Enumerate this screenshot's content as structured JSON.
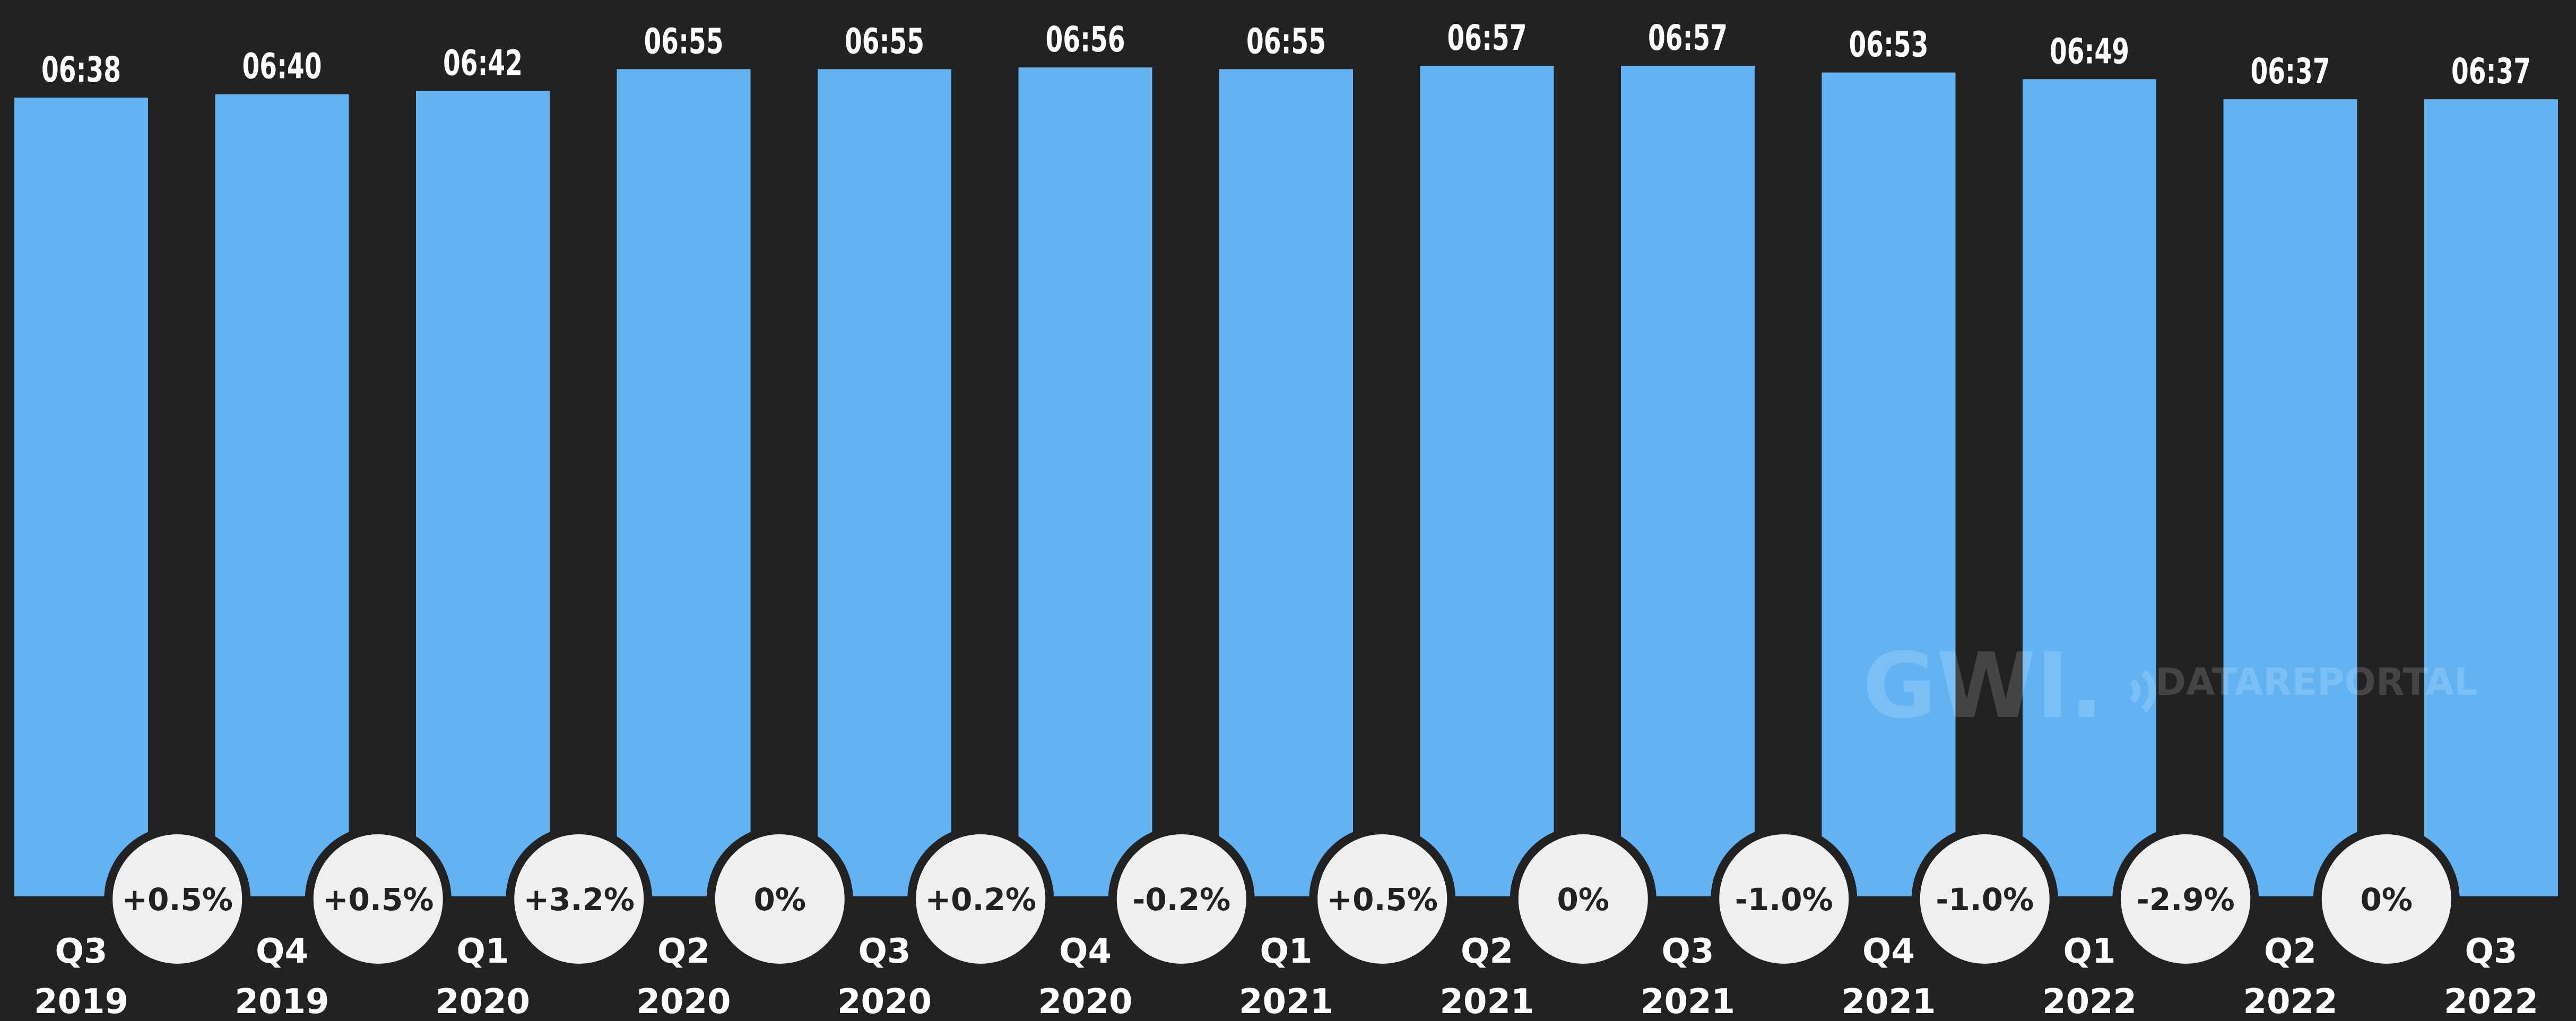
{
  "chart_data": {
    "type": "bar",
    "categories": [
      [
        "Q3",
        "2019"
      ],
      [
        "Q4",
        "2019"
      ],
      [
        "Q1",
        "2020"
      ],
      [
        "Q2",
        "2020"
      ],
      [
        "Q3",
        "2020"
      ],
      [
        "Q4",
        "2020"
      ],
      [
        "Q1",
        "2021"
      ],
      [
        "Q2",
        "2021"
      ],
      [
        "Q3",
        "2021"
      ],
      [
        "Q4",
        "2021"
      ],
      [
        "Q1",
        "2022"
      ],
      [
        "Q2",
        "2022"
      ],
      [
        "Q3",
        "2022"
      ]
    ],
    "values": [
      398,
      400,
      402,
      415,
      415,
      416,
      415,
      417,
      417,
      413,
      409,
      397,
      397
    ],
    "value_labels": [
      "06:38",
      "06:40",
      "06:42",
      "06:55",
      "06:55",
      "06:56",
      "06:55",
      "06:57",
      "06:57",
      "06:53",
      "06:49",
      "06:37",
      "06:37"
    ],
    "changes": [
      "+0.5%",
      "+0.5%",
      "+3.2%",
      "0%",
      "+0.2%",
      "-0.2%",
      "+0.5%",
      "0%",
      "-1.0%",
      "-1.0%",
      "-2.9%",
      "0%"
    ],
    "value_unit": "minutes",
    "ylim": [
      0,
      417
    ],
    "grid": false,
    "colors": {
      "bar": "#63b3f3",
      "background": "#222222",
      "text": "#ffffff",
      "bubble": "#efefef",
      "bubble_border": "#222222",
      "bubble_text": "#222222"
    }
  },
  "watermark": {
    "gwi": "GWI.",
    "datareportal": "DATAREPORTAL"
  }
}
